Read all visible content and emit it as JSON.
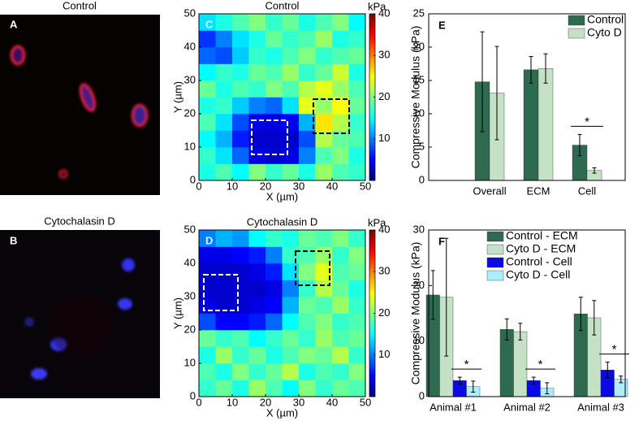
{
  "images": [
    {
      "title": "Control",
      "label": "A"
    },
    {
      "title": "Cytochalasin D",
      "label": "B"
    }
  ],
  "chart_data": [
    {
      "type": "heatmap",
      "label": "C",
      "title": "Control",
      "xlabel": "X (µm)",
      "ylabel": "Y (µm)",
      "xlim": [
        0,
        50
      ],
      "ylim": [
        0,
        50
      ],
      "xticks": [
        0,
        10,
        20,
        30,
        40,
        50
      ],
      "yticks": [
        0,
        10,
        20,
        30,
        40,
        50
      ],
      "clim": [
        0,
        40
      ],
      "cticks": [
        10,
        20,
        30,
        40
      ],
      "colorbar_label": "kPa",
      "z": [
        [
          16,
          18,
          15,
          20,
          17,
          19,
          16,
          21,
          18,
          17
        ],
        [
          17,
          14,
          9,
          4,
          3,
          4,
          10,
          18,
          20,
          16
        ],
        [
          15,
          12,
          6,
          3,
          3,
          3,
          8,
          22,
          19,
          18
        ],
        [
          18,
          14,
          8,
          4,
          4,
          5,
          12,
          26,
          22,
          17
        ],
        [
          16,
          17,
          13,
          10,
          9,
          14,
          24,
          21,
          25,
          19
        ],
        [
          19,
          16,
          18,
          17,
          20,
          18,
          22,
          24,
          21,
          18
        ],
        [
          15,
          17,
          16,
          19,
          18,
          21,
          17,
          19,
          23,
          16
        ],
        [
          9,
          8,
          13,
          17,
          16,
          18,
          20,
          17,
          18,
          19
        ],
        [
          7,
          10,
          14,
          16,
          19,
          17,
          18,
          21,
          16,
          17
        ],
        [
          14,
          16,
          18,
          20,
          17,
          19,
          16,
          18,
          20,
          15
        ]
      ]
    },
    {
      "type": "heatmap",
      "label": "D",
      "title": "Cytochalasin D",
      "xlabel": "X (µm)",
      "ylabel": "Y (µm)",
      "xlim": [
        0,
        50
      ],
      "ylim": [
        0,
        50
      ],
      "xticks": [
        0,
        10,
        20,
        30,
        40,
        50
      ],
      "yticks": [
        0,
        10,
        20,
        30,
        40,
        50
      ],
      "clim": [
        0,
        40
      ],
      "cticks": [
        10,
        20,
        30,
        40
      ],
      "colorbar_label": "kPa",
      "z": [
        [
          17,
          19,
          16,
          21,
          18,
          15,
          20,
          17,
          19,
          18
        ],
        [
          18,
          16,
          20,
          17,
          19,
          22,
          16,
          18,
          17,
          20
        ],
        [
          16,
          21,
          17,
          19,
          16,
          18,
          20,
          19,
          22,
          17
        ],
        [
          19,
          17,
          18,
          15,
          17,
          19,
          17,
          21,
          18,
          19
        ],
        [
          8,
          5,
          5,
          6,
          9,
          15,
          18,
          20,
          17,
          18
        ],
        [
          4,
          3,
          3,
          4,
          5,
          12,
          19,
          18,
          21,
          17
        ],
        [
          3,
          3,
          3,
          3,
          4,
          10,
          17,
          22,
          19,
          16
        ],
        [
          3,
          3,
          3,
          4,
          6,
          14,
          20,
          24,
          18,
          19
        ],
        [
          4,
          4,
          5,
          6,
          10,
          17,
          18,
          21,
          17,
          20
        ],
        [
          10,
          12,
          11,
          15,
          17,
          16,
          19,
          18,
          20,
          17
        ]
      ]
    },
    {
      "type": "grouped_bar",
      "label": "E",
      "ylabel": "Compressive Modulus (kPa)",
      "categories": [
        "Overall",
        "ECM",
        "Cell"
      ],
      "series": [
        {
          "name": "Control",
          "color": "#2d6a4f",
          "values": [
            14.8,
            16.6,
            5.3
          ],
          "errors": [
            7.5,
            2.0,
            1.6
          ]
        },
        {
          "name": "Cyto D",
          "color": "#c6e2c6",
          "values": [
            13.1,
            16.8,
            1.5
          ],
          "errors": [
            7.0,
            2.2,
            0.4
          ]
        }
      ],
      "ylim": [
        0,
        25
      ],
      "yticks": [
        0,
        5,
        10,
        15,
        20,
        25
      ],
      "annotations": [
        "*"
      ],
      "legend": "upper right"
    },
    {
      "type": "grouped_bar",
      "label": "F",
      "ylabel": "Compressive Modulus (kPa)",
      "categories": [
        "Animal #1",
        "Animal #2",
        "Animal #3"
      ],
      "series": [
        {
          "name": "Control - ECM",
          "color": "#2d6a4f",
          "values": [
            18.3,
            12.1,
            14.9
          ],
          "errors": [
            4.4,
            1.9,
            3.0
          ]
        },
        {
          "name": "Cyto D -  ECM",
          "color": "#c6e2c6",
          "values": [
            17.9,
            11.7,
            14.2
          ],
          "errors": [
            10.6,
            1.5,
            3.1
          ]
        },
        {
          "name": "Control - Cell",
          "color": "#0a0ae6",
          "values": [
            2.9,
            2.9,
            4.8
          ],
          "errors": [
            0.6,
            0.6,
            1.4
          ]
        },
        {
          "name": "Cyto D - Cell",
          "color": "#aeeefc",
          "values": [
            1.8,
            1.5,
            3.1
          ],
          "errors": [
            1.0,
            1.0,
            0.6
          ]
        }
      ],
      "ylim": [
        0,
        30
      ],
      "yticks": [
        0,
        10,
        20,
        30
      ],
      "annotations": [
        "*",
        "*",
        "*"
      ],
      "legend": "upper left"
    }
  ]
}
